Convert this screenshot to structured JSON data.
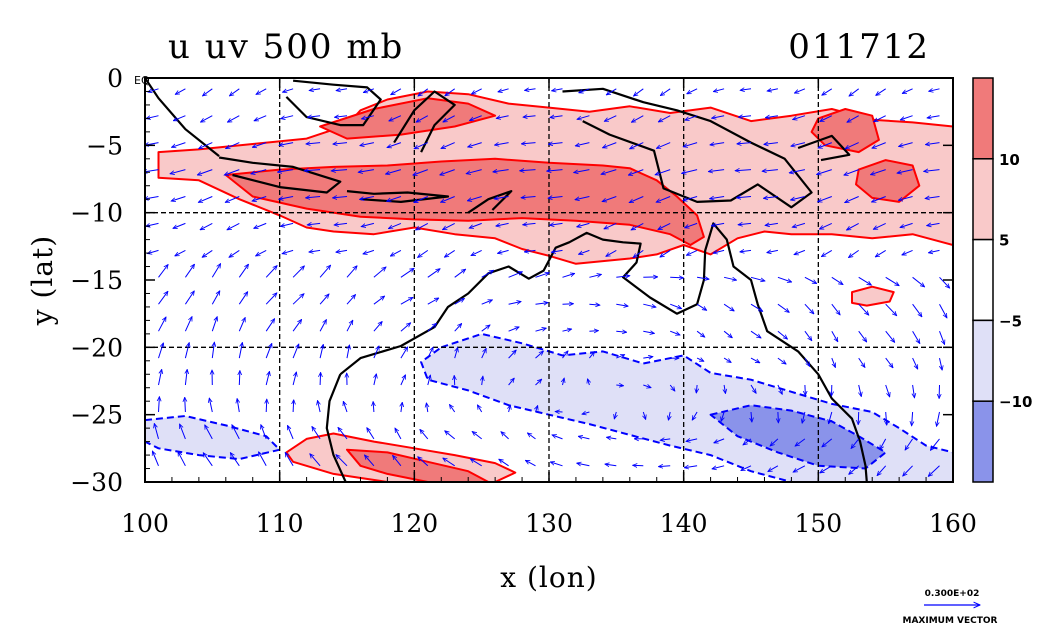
{
  "header": {
    "left_title": "u uv 500 mb",
    "right_title": "011712"
  },
  "chart_data": {
    "type": "contour-map-with-vectors",
    "variable": "u",
    "vector_field": "uv",
    "level": "500 mb",
    "date_code": "011712",
    "xlabel": "x (lon)",
    "ylabel": "y (lat)",
    "xlim": [
      100,
      160
    ],
    "ylim": [
      -30,
      0
    ],
    "x_ticks": [
      100,
      110,
      120,
      130,
      140,
      150,
      160
    ],
    "y_ticks": [
      0,
      -5,
      -10,
      -15,
      -20,
      -25,
      -30
    ],
    "x_tick_labels": [
      "100",
      "110",
      "120",
      "130",
      "140",
      "150",
      "160"
    ],
    "y_tick_labels": [
      "0",
      "−5",
      "−10",
      "−15",
      "−20",
      "−25",
      "−30"
    ],
    "equator_label": "EQ",
    "grid_lines_x": [
      110,
      120,
      130,
      140,
      150
    ],
    "grid_lines_y": [
      -10,
      -20
    ],
    "colorbar": {
      "levels": [
        -10,
        -5,
        5,
        10
      ],
      "tick_labels": [
        "−10",
        "−5",
        "5",
        "10"
      ],
      "colors": [
        "#8a93ea",
        "#dfe0f7",
        "#ffffff",
        "#f9c9c9",
        "#f07a7a"
      ]
    },
    "contour_colors": {
      "positive": "#ff0000",
      "negative": "#0000ff",
      "coastline": "#000000",
      "vectors": "#0000ff"
    },
    "regions": [
      {
        "level": 5,
        "polygon": [
          [
            101,
            -5.5
          ],
          [
            104,
            -5.3
          ],
          [
            108,
            -4.9
          ],
          [
            112,
            -4.5
          ],
          [
            115,
            -3.5
          ],
          [
            116,
            -2.4
          ],
          [
            118,
            -1.6
          ],
          [
            121,
            -1.0
          ],
          [
            124,
            -1.2
          ],
          [
            127,
            -1.9
          ],
          [
            130,
            -2.2
          ],
          [
            133,
            -2.5
          ],
          [
            136,
            -2.1
          ],
          [
            139,
            -2.6
          ],
          [
            142,
            -2.2
          ],
          [
            145,
            -3.2
          ],
          [
            148,
            -2.8
          ],
          [
            151,
            -2.3
          ],
          [
            154,
            -3.1
          ],
          [
            157,
            -3.3
          ],
          [
            160,
            -3.6
          ],
          [
            160,
            -12.4
          ],
          [
            157,
            -11.6
          ],
          [
            154,
            -11.9
          ],
          [
            151,
            -11.6
          ],
          [
            148,
            -11.6
          ],
          [
            146,
            -11.4
          ],
          [
            144,
            -11.9
          ],
          [
            142,
            -13.1
          ],
          [
            140,
            -12.4
          ],
          [
            138,
            -13.1
          ],
          [
            136,
            -13.4
          ],
          [
            134,
            -13.6
          ],
          [
            132,
            -13.8
          ],
          [
            130,
            -13.2
          ],
          [
            128,
            -12.7
          ],
          [
            126,
            -11.9
          ],
          [
            123,
            -11.6
          ],
          [
            120,
            -11.1
          ],
          [
            117,
            -11.6
          ],
          [
            114,
            -11.4
          ],
          [
            112,
            -11.1
          ],
          [
            110,
            -10.2
          ],
          [
            107,
            -9.0
          ],
          [
            104,
            -7.6
          ],
          [
            101,
            -7.4
          ]
        ]
      },
      {
        "level": 10,
        "polygon": [
          [
            106,
            -7.2
          ],
          [
            110,
            -6.8
          ],
          [
            114,
            -6.6
          ],
          [
            118,
            -6.5
          ],
          [
            122,
            -6.2
          ],
          [
            126,
            -6.0
          ],
          [
            130,
            -6.3
          ],
          [
            134,
            -6.5
          ],
          [
            136,
            -6.7
          ],
          [
            138,
            -7.6
          ],
          [
            139.5,
            -8.8
          ],
          [
            141,
            -10.2
          ],
          [
            141.5,
            -11.8
          ],
          [
            140.5,
            -12.4
          ],
          [
            139,
            -11.6
          ],
          [
            136,
            -10.9
          ],
          [
            132,
            -10.6
          ],
          [
            128,
            -10.4
          ],
          [
            124,
            -10.6
          ],
          [
            120,
            -10.5
          ],
          [
            116,
            -10.3
          ],
          [
            112,
            -9.7
          ],
          [
            108,
            -8.8
          ]
        ]
      },
      {
        "level": 10,
        "polygon": [
          [
            113,
            -3.6
          ],
          [
            117,
            -2.3
          ],
          [
            121,
            -1.5
          ],
          [
            124,
            -1.9
          ],
          [
            126,
            -2.8
          ],
          [
            123,
            -3.6
          ],
          [
            119,
            -4.2
          ],
          [
            115,
            -4.5
          ]
        ]
      },
      {
        "level": 10,
        "polygon": [
          [
            150,
            -3.0
          ],
          [
            152,
            -2.3
          ],
          [
            154,
            -2.8
          ],
          [
            154.5,
            -4.6
          ],
          [
            153,
            -5.5
          ],
          [
            150.5,
            -5.0
          ],
          [
            149.5,
            -4.0
          ]
        ]
      },
      {
        "level": 10,
        "polygon": [
          [
            153,
            -6.8
          ],
          [
            155,
            -6.1
          ],
          [
            157,
            -6.5
          ],
          [
            157.5,
            -8.0
          ],
          [
            156,
            -9.2
          ],
          [
            154,
            -8.9
          ],
          [
            152.8,
            -7.9
          ]
        ]
      },
      {
        "level": -5,
        "polygon": [
          [
            122,
            -20.0
          ],
          [
            125,
            -19.0
          ],
          [
            128,
            -19.7
          ],
          [
            131,
            -20.6
          ],
          [
            134,
            -20.3
          ],
          [
            137,
            -21.2
          ],
          [
            140,
            -20.6
          ],
          [
            142,
            -21.9
          ],
          [
            145,
            -22.4
          ],
          [
            148,
            -23.3
          ],
          [
            151,
            -24.2
          ],
          [
            154,
            -24.8
          ],
          [
            156,
            -26.0
          ],
          [
            158,
            -27.3
          ],
          [
            160,
            -27.8
          ],
          [
            160,
            -30
          ],
          [
            148,
            -30
          ],
          [
            145,
            -29.2
          ],
          [
            142,
            -28.0
          ],
          [
            139,
            -27.3
          ],
          [
            136,
            -26.5
          ],
          [
            133,
            -25.7
          ],
          [
            130,
            -25.0
          ],
          [
            127,
            -24.3
          ],
          [
            124,
            -23.2
          ],
          [
            121,
            -22.4
          ],
          [
            120.5,
            -21.1
          ]
        ]
      },
      {
        "level": -5,
        "polygon": [
          [
            100,
            -25.4
          ],
          [
            103,
            -25.1
          ],
          [
            106,
            -25.8
          ],
          [
            109,
            -26.6
          ],
          [
            110,
            -27.6
          ],
          [
            107,
            -28.3
          ],
          [
            104,
            -28.0
          ],
          [
            101,
            -27.5
          ],
          [
            100,
            -27.0
          ]
        ]
      },
      {
        "level": -10,
        "polygon": [
          [
            142,
            -25.0
          ],
          [
            145,
            -24.3
          ],
          [
            148,
            -24.7
          ],
          [
            151,
            -25.5
          ],
          [
            153,
            -26.6
          ],
          [
            155,
            -27.8
          ],
          [
            153.5,
            -29.0
          ],
          [
            150,
            -28.8
          ],
          [
            147,
            -27.8
          ],
          [
            144,
            -26.6
          ]
        ]
      },
      {
        "level": 5,
        "polygon": [
          [
            112,
            -26.8
          ],
          [
            114,
            -26.4
          ],
          [
            117,
            -27.0
          ],
          [
            120,
            -27.5
          ],
          [
            123,
            -28.0
          ],
          [
            126,
            -28.6
          ],
          [
            127.5,
            -29.3
          ],
          [
            126,
            -30
          ],
          [
            118,
            -30
          ],
          [
            114,
            -29.4
          ],
          [
            111,
            -28.5
          ],
          [
            110.5,
            -27.8
          ]
        ]
      },
      {
        "level": 10,
        "polygon": [
          [
            115,
            -27.6
          ],
          [
            118,
            -27.8
          ],
          [
            121,
            -28.5
          ],
          [
            124,
            -29.2
          ],
          [
            125.5,
            -30
          ],
          [
            121,
            -30
          ],
          [
            118,
            -29.4
          ],
          [
            116,
            -28.8
          ]
        ]
      },
      {
        "level": 5,
        "polygon": [
          [
            152.5,
            -15.9
          ],
          [
            154,
            -15.5
          ],
          [
            155.6,
            -15.9
          ],
          [
            155.3,
            -16.6
          ],
          [
            153.6,
            -16.9
          ],
          [
            152.5,
            -16.7
          ]
        ]
      }
    ],
    "coastlines": [
      [
        [
          114.5,
          -22.0
        ],
        [
          116,
          -20.8
        ],
        [
          119,
          -19.9
        ],
        [
          121.5,
          -18.5
        ],
        [
          122.5,
          -17.0
        ],
        [
          124,
          -16.0
        ],
        [
          125.5,
          -14.5
        ],
        [
          127,
          -14.0
        ],
        [
          128.5,
          -14.9
        ],
        [
          129.6,
          -14.3
        ],
        [
          130.5,
          -12.6
        ],
        [
          131.5,
          -12.2
        ],
        [
          132.8,
          -11.5
        ],
        [
          134,
          -12.0
        ],
        [
          135.5,
          -12.2
        ],
        [
          136.8,
          -12.3
        ],
        [
          136.5,
          -13.7
        ],
        [
          135.5,
          -14.8
        ],
        [
          137.5,
          -16.3
        ],
        [
          139.5,
          -17.5
        ],
        [
          141,
          -16.8
        ],
        [
          141.5,
          -15.0
        ],
        [
          141.6,
          -12.8
        ],
        [
          142.2,
          -10.8
        ],
        [
          143.2,
          -12.0
        ],
        [
          143.7,
          -14.0
        ],
        [
          145,
          -15.0
        ],
        [
          145.5,
          -16.8
        ],
        [
          146.2,
          -18.8
        ],
        [
          148.5,
          -20.3
        ],
        [
          150,
          -22.0
        ],
        [
          151,
          -23.8
        ],
        [
          152.5,
          -25.3
        ],
        [
          153.1,
          -27.0
        ],
        [
          153.5,
          -28.8
        ],
        [
          153.6,
          -30
        ]
      ],
      [
        [
          114.5,
          -22.0
        ],
        [
          113.7,
          -24.0
        ],
        [
          113.5,
          -26.0
        ],
        [
          114.0,
          -28.0
        ],
        [
          114.9,
          -30
        ]
      ],
      [
        [
          111,
          -0.2
        ],
        [
          114,
          -0.5
        ],
        [
          116.5,
          -0.7
        ],
        [
          117.5,
          -1.6
        ],
        [
          116.2,
          -3.5
        ],
        [
          114.5,
          -3.5
        ],
        [
          112,
          -2.9
        ],
        [
          110.5,
          -1.4
        ]
      ],
      [
        [
          105.5,
          -5.9
        ],
        [
          108,
          -6.3
        ],
        [
          111,
          -6.6
        ],
        [
          114.5,
          -7.7
        ],
        [
          113.5,
          -8.5
        ],
        [
          110,
          -8.1
        ],
        [
          106.5,
          -7.2
        ]
      ],
      [
        [
          115,
          -8.4
        ],
        [
          117,
          -8.6
        ],
        [
          119.5,
          -8.5
        ],
        [
          122.5,
          -8.8
        ],
        [
          119,
          -9.2
        ],
        [
          116,
          -9.0
        ]
      ],
      [
        [
          118.5,
          -4.8
        ],
        [
          120,
          -2.4
        ],
        [
          121.5,
          -1.0
        ],
        [
          123,
          -2.0
        ],
        [
          121.5,
          -3.5
        ],
        [
          120.5,
          -5.5
        ]
      ],
      [
        [
          124,
          -10.0
        ],
        [
          125.5,
          -9.0
        ],
        [
          127.2,
          -8.4
        ],
        [
          125.8,
          -9.8
        ]
      ],
      [
        [
          131,
          -1.0
        ],
        [
          134,
          -0.8
        ],
        [
          137,
          -1.8
        ],
        [
          139.5,
          -2.4
        ],
        [
          142,
          -3.2
        ],
        [
          145,
          -4.8
        ],
        [
          147.5,
          -6.0
        ],
        [
          149.5,
          -8.5
        ],
        [
          148,
          -9.6
        ],
        [
          145.5,
          -7.9
        ],
        [
          143.5,
          -9.1
        ],
        [
          141,
          -9.2
        ],
        [
          138.5,
          -8.2
        ],
        [
          137.8,
          -5.4
        ],
        [
          134.5,
          -4.2
        ],
        [
          132.5,
          -3.2
        ]
      ],
      [
        [
          148.5,
          -5.2
        ],
        [
          151,
          -4.3
        ],
        [
          152.3,
          -5.7
        ],
        [
          150.2,
          -6.1
        ]
      ],
      [
        [
          100,
          0
        ],
        [
          101,
          -1.5
        ],
        [
          103,
          -3.8
        ],
        [
          105.5,
          -5.8
        ]
      ]
    ],
    "vector_field_sample": {
      "description": "Blue wind vectors; strong westward flow along 5-10S, weak anticyclonic circulation over 25S.",
      "grid_spacing_deg": 2
    },
    "reference_vector": {
      "magnitude_label": "0.300E+02",
      "caption": "MAXIMUM VECTOR"
    }
  }
}
